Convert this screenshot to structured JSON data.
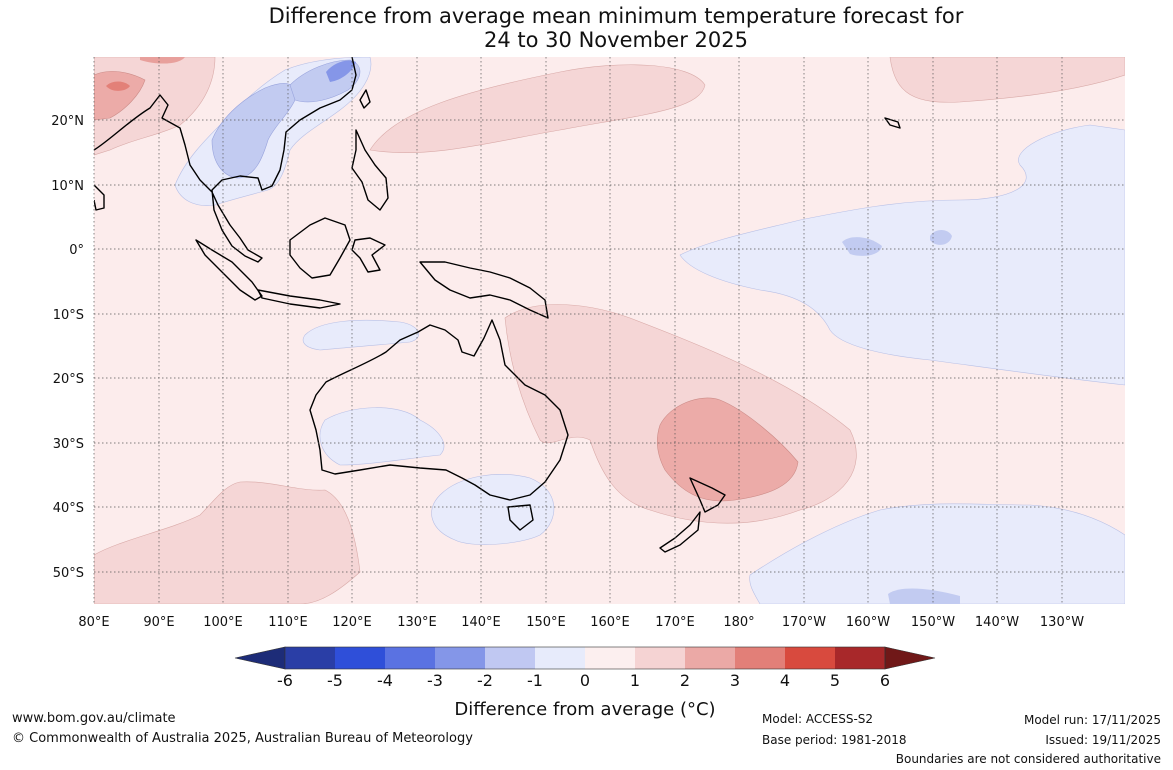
{
  "title": {
    "line1": "Difference from average mean minimum temperature forecast for",
    "line2": "24 to 30 November 2025"
  },
  "lat_labels": [
    "20°N",
    "10°N",
    "0°",
    "10°S",
    "20°S",
    "30°S",
    "40°S",
    "50°S"
  ],
  "lon_labels": [
    "80°E",
    "90°E",
    "100°E",
    "110°E",
    "120°E",
    "130°E",
    "140°E",
    "150°E",
    "160°E",
    "170°E",
    "180°",
    "170°W",
    "160°W",
    "150°W",
    "140°W",
    "130°W"
  ],
  "colorbar": {
    "ticks": [
      "-6",
      "-5",
      "-4",
      "-3",
      "-2",
      "-1",
      "0",
      "1",
      "2",
      "3",
      "4",
      "5",
      "6"
    ],
    "colors": [
      "#2a3ea6",
      "#2f4fd9",
      "#5a72e2",
      "#8496e8",
      "#c0c8f2",
      "#e7ebfb",
      "#fcefef",
      "#f5d3d3",
      "#eba9a6",
      "#e27f78",
      "#d84a3e",
      "#a8282a"
    ],
    "under_color": "#1d2c78",
    "over_color": "#701818",
    "label": "Difference from average (°C)"
  },
  "footer": {
    "website": "www.bom.gov.au/climate",
    "copyright": "© Commonwealth of Australia 2025, Australian Bureau of Meteorology",
    "model": "Model: ACCESS-S2",
    "base_period": "Base period: 1981-2018",
    "model_run": "Model run: 17/11/2025",
    "issued": "Issued: 19/11/2025",
    "disclaimer": "Boundaries are not considered authoritative"
  }
}
